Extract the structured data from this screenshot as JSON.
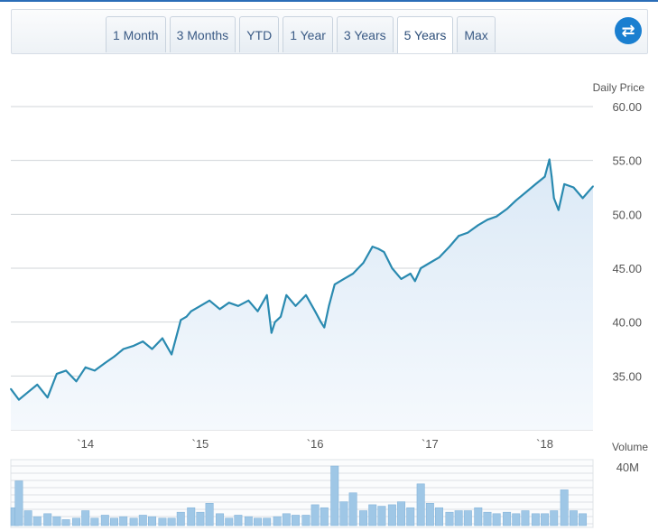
{
  "toolbar": {
    "tabs": [
      {
        "label": "1 Month"
      },
      {
        "label": "3 Months"
      },
      {
        "label": "YTD"
      },
      {
        "label": "1 Year"
      },
      {
        "label": "3 Years"
      },
      {
        "label": "5 Years"
      },
      {
        "label": "Max"
      }
    ],
    "active_tab": "5 Years",
    "swap_icon": "swap-arrows-icon"
  },
  "colors": {
    "line": "#2a8ab0",
    "area_top": "#dbe9f6",
    "area_bottom": "#f5f9fd",
    "grid": "#d0d4d8",
    "volume_bar": "#9fc7e6",
    "accent": "#1a7fd0"
  },
  "chart_data": [
    {
      "type": "line",
      "title": "",
      "ylabel": "Daily Price",
      "ylim": [
        30,
        60
      ],
      "yticks": [
        "35.00",
        "40.00",
        "45.00",
        "50.00",
        "55.00",
        "60.00"
      ],
      "xticks": [
        "`14",
        "`15",
        "`16",
        "`17",
        "`18"
      ],
      "xlim": [
        2013.35,
        2018.42
      ],
      "grid": true,
      "series": [
        {
          "name": "",
          "x": [
            2013.35,
            2013.42,
            2013.5,
            2013.58,
            2013.67,
            2013.75,
            2013.83,
            2013.92,
            2014.0,
            2014.08,
            2014.17,
            2014.25,
            2014.33,
            2014.42,
            2014.5,
            2014.58,
            2014.67,
            2014.75,
            2014.8,
            2014.83,
            2014.88,
            2014.92,
            2015.0,
            2015.08,
            2015.17,
            2015.25,
            2015.33,
            2015.42,
            2015.5,
            2015.58,
            2015.62,
            2015.65,
            2015.7,
            2015.75,
            2015.83,
            2015.92,
            2016.0,
            2016.05,
            2016.08,
            2016.12,
            2016.17,
            2016.25,
            2016.33,
            2016.42,
            2016.5,
            2016.55,
            2016.6,
            2016.67,
            2016.75,
            2016.83,
            2016.87,
            2016.92,
            2017.0,
            2017.08,
            2017.17,
            2017.25,
            2017.33,
            2017.42,
            2017.5,
            2017.58,
            2017.67,
            2017.75,
            2017.83,
            2017.92,
            2018.0,
            2018.04,
            2018.06,
            2018.08,
            2018.12,
            2018.17,
            2018.25,
            2018.33,
            2018.42
          ],
          "values": [
            33.8,
            32.8,
            33.5,
            34.2,
            33.0,
            35.2,
            35.5,
            34.5,
            35.8,
            35.5,
            36.2,
            36.8,
            37.5,
            37.8,
            38.2,
            37.5,
            38.5,
            37.0,
            39.0,
            40.2,
            40.5,
            41.0,
            41.5,
            42.0,
            41.2,
            41.8,
            41.5,
            42.0,
            41.0,
            42.5,
            39.0,
            40.0,
            40.5,
            42.5,
            41.5,
            42.5,
            41.0,
            40.0,
            39.5,
            41.5,
            43.5,
            44.0,
            44.5,
            45.5,
            47.0,
            46.8,
            46.5,
            45.0,
            44.0,
            44.5,
            43.8,
            45.0,
            45.5,
            46.0,
            47.0,
            48.0,
            48.3,
            49.0,
            49.5,
            49.8,
            50.5,
            51.3,
            52.0,
            52.8,
            53.5,
            55.1,
            53.5,
            51.5,
            50.4,
            52.8,
            52.5,
            51.5,
            52.6
          ]
        }
      ]
    },
    {
      "type": "bar",
      "title": "",
      "ylabel": "Volume",
      "yticks": [
        "40M"
      ],
      "ylim": [
        0,
        40
      ],
      "grid": true,
      "series": [
        {
          "name": "",
          "x": [
            2013.35,
            2013.42,
            2013.5,
            2013.58,
            2013.67,
            2013.75,
            2013.83,
            2013.92,
            2014.0,
            2014.08,
            2014.17,
            2014.25,
            2014.33,
            2014.42,
            2014.5,
            2014.58,
            2014.67,
            2014.75,
            2014.83,
            2014.92,
            2015.0,
            2015.08,
            2015.17,
            2015.25,
            2015.33,
            2015.42,
            2015.5,
            2015.58,
            2015.67,
            2015.75,
            2015.83,
            2015.92,
            2016.0,
            2016.08,
            2016.17,
            2016.25,
            2016.33,
            2016.42,
            2016.5,
            2016.58,
            2016.67,
            2016.75,
            2016.83,
            2016.92,
            2017.0,
            2017.08,
            2017.17,
            2017.25,
            2017.33,
            2017.42,
            2017.5,
            2017.58,
            2017.67,
            2017.75,
            2017.83,
            2017.92,
            2018.0,
            2018.08,
            2018.17,
            2018.25,
            2018.33
          ],
          "values": [
            12,
            30,
            10,
            6,
            8,
            6,
            4,
            5,
            10,
            5,
            7,
            5,
            6,
            5,
            7,
            6,
            5,
            5,
            9,
            12,
            9,
            15,
            8,
            5,
            7,
            6,
            5,
            5,
            6,
            8,
            7,
            7,
            14,
            12,
            40,
            16,
            22,
            10,
            14,
            13,
            14,
            16,
            12,
            28,
            15,
            12,
            9,
            10,
            10,
            12,
            9,
            8,
            9,
            8,
            10,
            8,
            8,
            10,
            24,
            10,
            8
          ]
        }
      ]
    }
  ]
}
